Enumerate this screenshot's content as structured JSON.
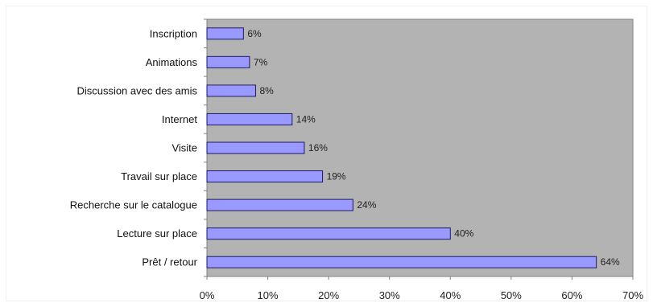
{
  "chart_data": {
    "type": "bar",
    "orientation": "horizontal",
    "categories": [
      "Inscription",
      "Animations",
      "Discussion avec des amis",
      "Internet",
      "Visite",
      "Travail sur place",
      "Recherche sur le catalogue",
      "Lecture sur place",
      "Prêt / retour"
    ],
    "values": [
      6,
      7,
      8,
      14,
      16,
      19,
      24,
      40,
      64
    ],
    "value_labels": [
      "6%",
      "7%",
      "8%",
      "14%",
      "16%",
      "19%",
      "24%",
      "40%",
      "64%"
    ],
    "xlim": [
      0,
      70
    ],
    "xticks": [
      0,
      10,
      20,
      30,
      40,
      50,
      60,
      70
    ],
    "xtick_labels": [
      "0%",
      "10%",
      "20%",
      "30%",
      "40%",
      "50%",
      "60%",
      "70%"
    ],
    "title": "",
    "xlabel": "",
    "ylabel": "",
    "grid": false,
    "legend": false,
    "colors": {
      "bar_fill": "#9999ff",
      "bar_stroke": "#1a1a66",
      "plot_background": "#b3b3b3",
      "plot_border": "#808080"
    }
  }
}
